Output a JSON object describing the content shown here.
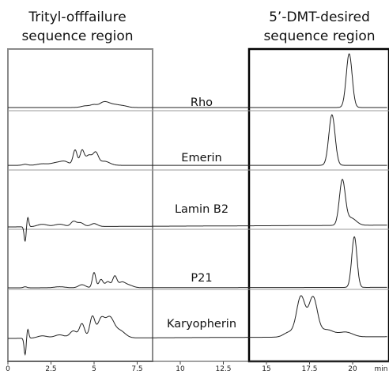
{
  "chart_data": {
    "type": "line",
    "xlabel": "min",
    "x_ticks": [
      "0",
      "2.5",
      "5",
      "7.5",
      "10",
      "12.5",
      "15",
      "17.5",
      "20",
      "min"
    ],
    "xlim": [
      0,
      22
    ],
    "regions": [
      {
        "title_lines": [
          "Trityl-offfailure",
          "sequence region"
        ],
        "x_range": [
          0,
          8.5
        ],
        "color": "#8a8a8a"
      },
      {
        "title_lines": [
          "5’-DMT-desired",
          "sequence region"
        ],
        "x_range": [
          14.6,
          22
        ],
        "color": "#000000"
      }
    ],
    "series": [
      {
        "name": "Rho",
        "baseline": [
          0.5,
          0.5
        ],
        "peaks": [
          [
            4.5,
            0.03,
            0.25
          ],
          [
            5.0,
            0.05,
            0.2
          ],
          [
            5.5,
            0.08,
            0.2
          ],
          [
            5.8,
            0.06,
            0.2
          ],
          [
            6.2,
            0.05,
            0.25
          ],
          [
            6.7,
            0.03,
            0.25
          ],
          [
            19.8,
            1.0,
            0.17
          ]
        ]
      },
      {
        "name": "Emerin",
        "baseline": [
          0.5,
          0.5
        ],
        "peaks": [
          [
            1.0,
            0.02,
            0.15
          ],
          [
            2.0,
            0.03,
            0.3
          ],
          [
            2.8,
            0.05,
            0.3
          ],
          [
            3.3,
            0.07,
            0.25
          ],
          [
            3.9,
            0.3,
            0.12
          ],
          [
            4.3,
            0.28,
            0.12
          ],
          [
            4.7,
            0.2,
            0.2
          ],
          [
            5.1,
            0.22,
            0.15
          ],
          [
            5.6,
            0.08,
            0.3
          ],
          [
            18.8,
            1.0,
            0.18
          ]
        ]
      },
      {
        "name": "Lamin B2",
        "baseline": [
          0.0,
          0.6
        ],
        "peaks": [
          [
            1.0,
            -0.3,
            0.06
          ],
          [
            1.15,
            0.2,
            0.06
          ],
          [
            2.0,
            0.05,
            0.3
          ],
          [
            3.0,
            0.05,
            0.3
          ],
          [
            3.8,
            0.1,
            0.15
          ],
          [
            4.2,
            0.08,
            0.2
          ],
          [
            5.0,
            0.06,
            0.2
          ],
          [
            19.4,
            0.9,
            0.17
          ],
          [
            19.9,
            0.15,
            0.3
          ]
        ]
      },
      {
        "name": "P21",
        "baseline": [
          0.0,
          0.15
        ],
        "peaks": [
          [
            1.0,
            0.02,
            0.1
          ],
          [
            3.0,
            0.02,
            0.3
          ],
          [
            4.3,
            0.06,
            0.2
          ],
          [
            5.0,
            0.3,
            0.1
          ],
          [
            5.4,
            0.16,
            0.12
          ],
          [
            5.8,
            0.12,
            0.15
          ],
          [
            6.2,
            0.22,
            0.12
          ],
          [
            6.6,
            0.1,
            0.2
          ],
          [
            7.0,
            0.05,
            0.25
          ],
          [
            20.1,
            1.0,
            0.15
          ]
        ]
      },
      {
        "name": "Karyopherin",
        "baseline": [
          0.0,
          0.6
        ],
        "peaks": [
          [
            1.0,
            -0.35,
            0.06
          ],
          [
            1.15,
            0.2,
            0.06
          ],
          [
            2.0,
            0.05,
            0.3
          ],
          [
            3.0,
            0.07,
            0.3
          ],
          [
            3.8,
            0.15,
            0.2
          ],
          [
            4.3,
            0.3,
            0.15
          ],
          [
            4.9,
            0.45,
            0.15
          ],
          [
            5.4,
            0.38,
            0.2
          ],
          [
            5.9,
            0.42,
            0.25
          ],
          [
            6.5,
            0.15,
            0.3
          ],
          [
            16.3,
            0.1,
            0.3
          ],
          [
            17.0,
            0.85,
            0.25
          ],
          [
            17.7,
            0.82,
            0.25
          ],
          [
            18.5,
            0.15,
            0.4
          ],
          [
            19.6,
            0.1,
            0.4
          ]
        ]
      }
    ]
  }
}
